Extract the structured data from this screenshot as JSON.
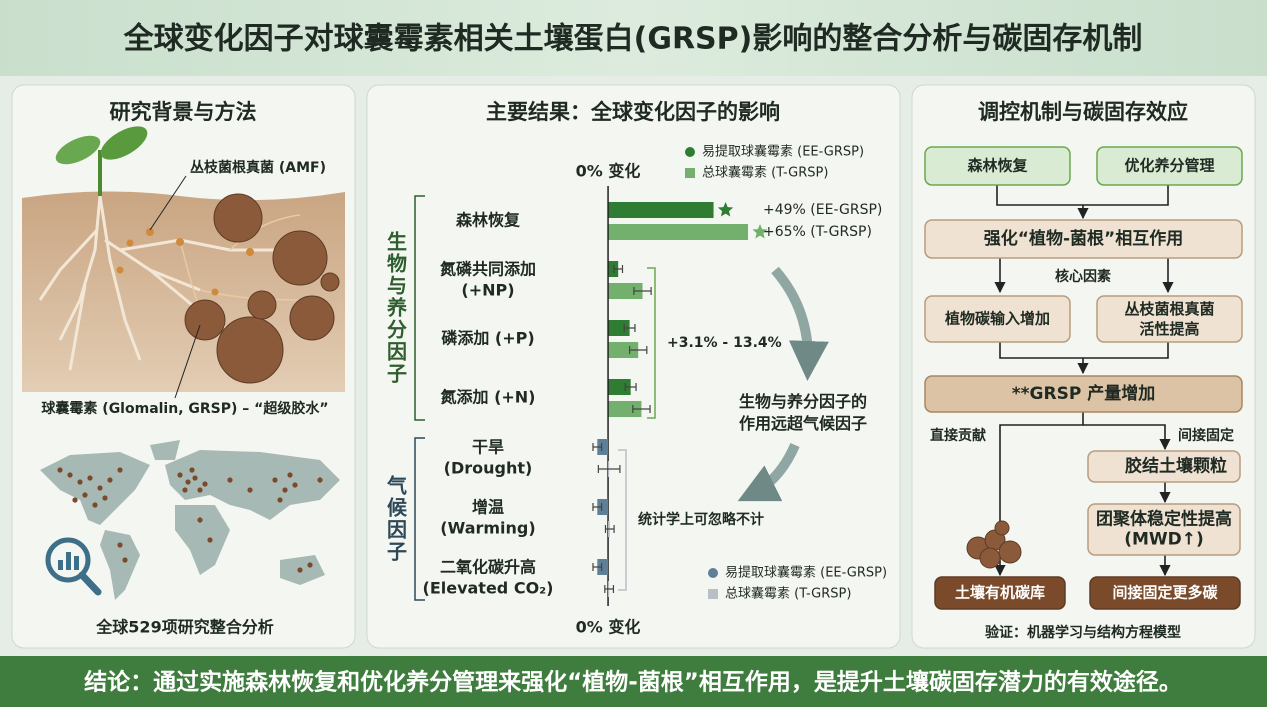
{
  "header": {
    "title": "全球变化因子对球囊霉素相关土壤蛋白(GRSP)影响的整合分析与碳固存机制"
  },
  "left_panel": {
    "title": "研究背景与方法",
    "amf_label": "丛枝菌根真菌 (AMF)",
    "glomalin_label": "球囊霉素 (Glomalin, GRSP) – “超级胶水”",
    "map_caption": "全球529项研究整合分析"
  },
  "middle_panel": {
    "title": "主要结果：全球变化因子的影响",
    "comparison_note": "生物与养分因子的\n作用远超气候因子"
  },
  "chart_data": [
    {
      "type": "bar",
      "orientation": "horizontal",
      "group_label": "生物与养分因子",
      "x_label": "0% 变化",
      "annotation": "+3.1% - 13.4%",
      "categories": [
        "森林恢复",
        "氮磷共同添加\n(+NP)",
        "磷添加 (+P)",
        "氮添加 (+N)"
      ],
      "xlim": [
        -20,
        65
      ],
      "series": [
        {
          "name": "易提取球囊霉素 (EE-GRSP)",
          "color": "#2e7d32",
          "legend_marker": "circle",
          "values": [
            49,
            4.7,
            10,
            10.5
          ],
          "errors": [
            null,
            2,
            2.5,
            2.5
          ],
          "value_labels": [
            "+49% (EE-GRSP)",
            null,
            null,
            null
          ]
        },
        {
          "name": "总球囊霉素 (T-GRSP)",
          "color": "#74b06d",
          "legend_marker": "square",
          "values": [
            65,
            16,
            14,
            15.5
          ],
          "errors": [
            null,
            4,
            4,
            4
          ],
          "value_labels": [
            "+65% (T-GRSP)",
            null,
            null,
            null
          ]
        }
      ]
    },
    {
      "type": "bar",
      "orientation": "horizontal",
      "group_label": "气候因子",
      "x_label": "0% 变化",
      "annotation": "统计学上可忽略不计",
      "categories": [
        "干旱\n(Drought)",
        "增温\n(Warming)",
        "二氧化碳升高\n(Elevated CO₂)"
      ],
      "xlim": [
        -20,
        65
      ],
      "series": [
        {
          "name": "易提取球囊霉素 (EE-GRSP)",
          "color": "#5f7f96",
          "legend_marker": "circle",
          "values": [
            -5,
            -5,
            -5
          ],
          "errors": [
            2,
            2,
            2
          ]
        },
        {
          "name": "总球囊霉素 (T-GRSP)",
          "color": "#b9bfc4",
          "legend_marker": "square",
          "values": [
            0.5,
            0.8,
            0.5
          ],
          "errors": [
            5,
            2,
            2
          ]
        }
      ]
    }
  ],
  "right_panel": {
    "title": "调控机制与碳固存效应",
    "drivers": [
      "森林恢复",
      "优化养分管理"
    ],
    "interaction": "强化“植物-菌根”相互作用",
    "core_label": "核心因素",
    "core_factors": [
      "植物碳输入增加",
      "丛枝菌根真菌\n活性提高"
    ],
    "grsp": "**GRSP 产量增加",
    "direct_label": "直接贡献",
    "indirect_label": "间接固定",
    "indirect_steps": [
      "胶结土壤颗粒",
      "团聚体稳定性提高\n(MWD↑)"
    ],
    "outcomes": [
      "土壤有机碳库",
      "间接固定更多碳"
    ],
    "validation": "验证：机器学习与结构方程模型"
  },
  "footer": {
    "conclusion": "结论：通过实施森林恢复和优化养分管理来强化“植物-菌根”相互作用，是提升土壤碳固存潜力的有效途径。"
  }
}
